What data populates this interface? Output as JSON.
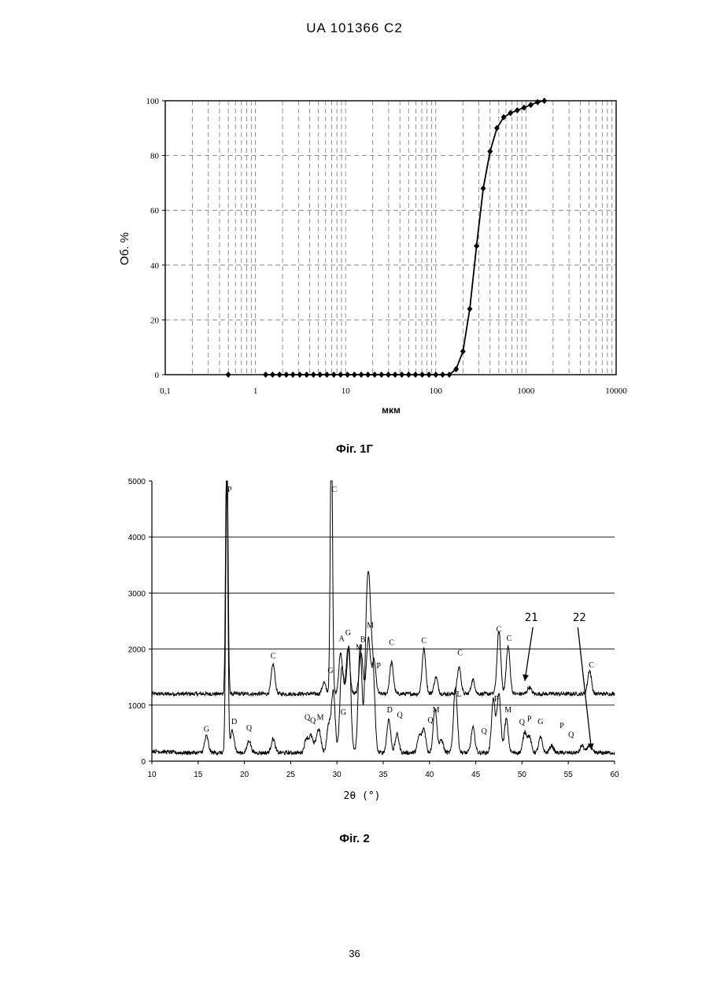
{
  "header": {
    "doc_id": "UA   101366   C2"
  },
  "page_number": "36",
  "captions": {
    "fig1": "Фіг. 1Г",
    "fig2": "Фіг. 2"
  },
  "chart_data": [
    {
      "type": "line",
      "title": "",
      "xlabel": "мкм",
      "ylabel": "Об. %",
      "x_scale": "log",
      "xlim": [
        0.1,
        10000
      ],
      "ylim": [
        0,
        100
      ],
      "x_tick_labels": [
        "0,1",
        "1",
        "10",
        "100",
        "1000",
        "10000"
      ],
      "y_tick_labels": [
        "0",
        "20",
        "40",
        "60",
        "80",
        "100"
      ],
      "grid": "vertical dashed minor lines, horizontal dashed at 20,40,60,80",
      "series": [
        {
          "x": [
            0.5,
            1.3,
            1.55,
            1.85,
            2.2,
            2.6,
            3.1,
            3.7,
            4.4,
            5.2,
            6.2,
            7.4,
            8.8,
            10.5,
            12.5,
            14.9,
            17.7,
            21,
            25,
            29.8,
            35.4,
            42,
            50,
            59.5,
            70.7,
            84,
            100,
            119,
            141,
            168,
            200,
            238,
            283,
            336,
            400,
            476,
            566,
            673,
            800,
            951,
            1131,
            1345,
            1600
          ],
          "y": [
            0,
            0,
            0,
            0,
            0,
            0,
            0,
            0,
            0,
            0,
            0,
            0,
            0,
            0,
            0,
            0,
            0,
            0,
            0,
            0,
            0,
            0,
            0,
            0,
            0,
            0,
            0,
            0,
            0,
            2,
            8.5,
            24,
            47,
            68,
            81.5,
            90,
            94,
            95.5,
            96.5,
            97.5,
            98.5,
            99.5,
            100
          ]
        }
      ]
    },
    {
      "type": "line",
      "title": "",
      "xlabel": "2θ (°)",
      "ylabel": "",
      "xlim": [
        10,
        60
      ],
      "ylim": [
        0,
        5000
      ],
      "x_tick_labels": [
        "10",
        "15",
        "20",
        "25",
        "30",
        "35",
        "40",
        "45",
        "50",
        "55",
        "60"
      ],
      "y_tick_labels": [
        "0",
        "1000",
        "2000",
        "3000",
        "4000",
        "5000"
      ],
      "grid": "horizontal lines at 1000, 2000, 3000, 4000",
      "series": [
        {
          "name": "21",
          "baseline": 1200,
          "peaks": [
            [
              18.1,
              5000
            ],
            [
              23.1,
              530
            ],
            [
              28.6,
              200
            ],
            [
              29.4,
              5000
            ],
            [
              30.4,
              720
            ],
            [
              31.2,
              820
            ],
            [
              32.6,
              750
            ],
            [
              33.4,
              980
            ],
            [
              34.0,
              600
            ],
            [
              35.9,
              560
            ],
            [
              39.4,
              800
            ],
            [
              40.7,
              300
            ],
            [
              43.2,
              480
            ],
            [
              44.7,
              250
            ],
            [
              47.5,
              1120
            ],
            [
              48.5,
              850
            ],
            [
              50.8,
              120
            ],
            [
              57.3,
              420
            ]
          ],
          "labels": [
            [
              "P",
              18.4,
              4800
            ],
            [
              "C",
              23.1,
              1830
            ],
            [
              "C",
              29.7,
              4800
            ],
            [
              "A",
              30.5,
              2140
            ],
            [
              "G",
              31.2,
              2250
            ],
            [
              "M",
              32.4,
              1990
            ],
            [
              "B",
              32.8,
              2130
            ],
            [
              "M",
              33.6,
              2380
            ],
            [
              "P",
              34.5,
              1660
            ],
            [
              "C",
              35.9,
              2070
            ],
            [
              "C",
              39.4,
              2110
            ],
            [
              "C",
              43.3,
              1890
            ],
            [
              "C",
              47.5,
              2310
            ],
            [
              "C",
              48.6,
              2150
            ],
            [
              "C",
              57.5,
              1670
            ]
          ],
          "annotation": {
            "text": "21",
            "label_at": [
              51.0,
              2500
            ],
            "arrow_to": [
              50.3,
              1430
            ]
          }
        },
        {
          "name": "22",
          "baseline": 150,
          "peaks": [
            [
              15.9,
              300
            ],
            [
              18.1,
              5000
            ],
            [
              18.7,
              400
            ],
            [
              20.5,
              220
            ],
            [
              23.1,
              250
            ],
            [
              26.7,
              260
            ],
            [
              27.2,
              300
            ],
            [
              27.8,
              200
            ],
            [
              28.1,
              330
            ],
            [
              29.1,
              480
            ],
            [
              29.6,
              1100
            ],
            [
              30.5,
              1400
            ],
            [
              30.9,
              820
            ],
            [
              31.3,
              1800
            ],
            [
              32.5,
              1900
            ],
            [
              33.2,
              2000
            ],
            [
              33.5,
              2250
            ],
            [
              33.9,
              1400
            ],
            [
              35.6,
              600
            ],
            [
              36.5,
              330
            ],
            [
              38.9,
              300
            ],
            [
              39.4,
              420
            ],
            [
              40.6,
              800
            ],
            [
              41.3,
              230
            ],
            [
              42.8,
              1180
            ],
            [
              44.7,
              450
            ],
            [
              46.9,
              950
            ],
            [
              47.5,
              1050
            ],
            [
              48.3,
              600
            ],
            [
              50.3,
              370
            ],
            [
              50.8,
              280
            ],
            [
              52.0,
              270
            ],
            [
              53.2,
              130
            ],
            [
              56.5,
              130
            ],
            [
              57.3,
              150
            ]
          ],
          "labels": [
            [
              "G",
              15.9,
              530
            ],
            [
              "D",
              18.9,
              660
            ],
            [
              "Q",
              20.5,
              550
            ],
            [
              "Q",
              26.8,
              740
            ],
            [
              "Q",
              27.4,
              680
            ],
            [
              "M",
              28.2,
              740
            ],
            [
              "G",
              29.3,
              1570
            ],
            [
              "G",
              30.7,
              830
            ],
            [
              "D",
              35.7,
              870
            ],
            [
              "Q",
              36.8,
              780
            ],
            [
              "Q",
              40.1,
              690
            ],
            [
              "M",
              40.7,
              870
            ],
            [
              "L",
              43.2,
              1150
            ],
            [
              "Q",
              45.9,
              490
            ],
            [
              "P",
              47.2,
              1070
            ],
            [
              "M",
              48.5,
              870
            ],
            [
              "Q",
              50.0,
              650
            ],
            [
              "P",
              50.8,
              710
            ],
            [
              "G",
              52.0,
              660
            ],
            [
              "P",
              54.3,
              590
            ],
            [
              "Q",
              55.3,
              430
            ]
          ],
          "annotation": {
            "text": "22",
            "label_at": [
              56.2,
              2500
            ],
            "arrow_to": [
              57.5,
              200
            ]
          }
        }
      ]
    }
  ]
}
